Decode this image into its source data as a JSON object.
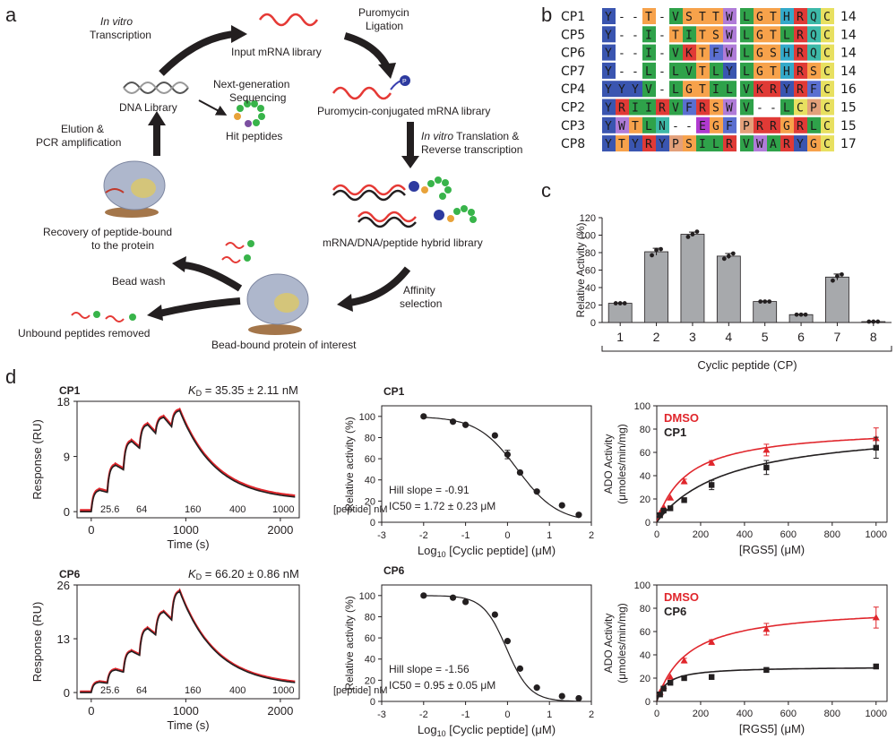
{
  "panels": {
    "a": "a",
    "b": "b",
    "c": "c",
    "d": "d"
  },
  "cycle": {
    "in_vitro_1": "In vitro",
    "transcription": "Transcription",
    "input_library": "Input mRNA library",
    "puro_1": "Puromycin",
    "puro_2": "Ligation",
    "dna_library": "DNA Library",
    "ngs_1": "Next-generation",
    "ngs_2": "Sequencing",
    "conjugated": "Puromycin-conjugated mRNA library",
    "elution_1": "Elution &",
    "elution_2": "PCR amplification",
    "hit_peptides": "Hit peptides",
    "translation_it": "In vitro",
    "translation_1": " Translation &",
    "translation_2": "Reverse transcription",
    "recovery_1": "Recovery of peptide-bound",
    "recovery_2": "to the protein",
    "hybrid": "mRNA/DNA/peptide hybrid library",
    "bead_wash": "Bead wash",
    "affinity_1": "Affinity",
    "affinity_2": "selection",
    "unbound": "Unbound peptides removed",
    "bead_bound": "Bead-bound protein of interest",
    "puro_mark": "P"
  },
  "alignment": [
    {
      "name": "CP1",
      "left": [
        "Y",
        "-",
        "-",
        "T",
        "-",
        "V",
        "S",
        "T",
        "T",
        "W"
      ],
      "right": [
        "L",
        "G",
        "T",
        "H",
        "R",
        "Q",
        "C"
      ],
      "len": "14"
    },
    {
      "name": "CP5",
      "left": [
        "Y",
        "-",
        "-",
        "I",
        "-",
        "T",
        "I",
        "T",
        "S",
        "W"
      ],
      "right": [
        "L",
        "G",
        "T",
        "L",
        "R",
        "Q",
        "C"
      ],
      "len": "14"
    },
    {
      "name": "CP6",
      "left": [
        "Y",
        "-",
        "-",
        "I",
        "-",
        "V",
        "K",
        "T",
        "F",
        "W"
      ],
      "right": [
        "L",
        "G",
        "S",
        "H",
        "R",
        "Q",
        "C"
      ],
      "len": "14"
    },
    {
      "name": "CP7",
      "left": [
        "Y",
        "-",
        "-",
        "L",
        "-",
        "L",
        "V",
        "T",
        "L",
        "Y"
      ],
      "right": [
        "L",
        "G",
        "T",
        "H",
        "R",
        "S",
        "C"
      ],
      "len": "14"
    },
    {
      "name": "CP4",
      "left": [
        "Y",
        "Y",
        "Y",
        "V",
        "-",
        "L",
        "G",
        "T",
        "I",
        "L"
      ],
      "right": [
        "V",
        "K",
        "R",
        "Y",
        "R",
        "F",
        "C"
      ],
      "len": "16"
    },
    {
      "name": "CP2",
      "left": [
        "Y",
        "R",
        "I",
        "I",
        "R",
        "V",
        "F",
        "R",
        "S",
        "W"
      ],
      "right": [
        "V",
        "-",
        "-",
        "L",
        "C",
        "P",
        "C"
      ],
      "len": "15"
    },
    {
      "name": "CP3",
      "left": [
        "Y",
        "W",
        "T",
        "L",
        "N",
        "-",
        "-",
        "E",
        "G",
        "F"
      ],
      "right": [
        "P",
        "R",
        "R",
        "G",
        "R",
        "L",
        "C"
      ],
      "len": "15"
    },
    {
      "name": "CP8",
      "left": [
        "Y",
        "T",
        "Y",
        "R",
        "Y",
        "P",
        "S",
        "I",
        "L",
        "R"
      ],
      "right": [
        "V",
        "W",
        "A",
        "R",
        "Y",
        "G",
        "C"
      ],
      "len": "17"
    }
  ],
  "residue_colors": {
    "Y": "#3a55b0",
    "W": "#b07cd8",
    "F": "#5b6fd0",
    "I": "#2fa24a",
    "L": "#2fa24a",
    "V": "#2fa24a",
    "A": "#2fa24a",
    "G": "#f7a24b",
    "P": "#e3a07a",
    "S": "#f7a24b",
    "T": "#f7a24b",
    "C": "#e8e060",
    "Q": "#3db9a8",
    "N": "#3db9a8",
    "H": "#33a9c9",
    "R": "#e03a36",
    "K": "#e03a36",
    "E": "#b03ad0",
    "-": "#ffffff"
  },
  "chart_data": [
    {
      "type": "bar",
      "panel": "c",
      "categories": [
        "1",
        "2",
        "3",
        "4",
        "5",
        "6",
        "7",
        "8"
      ],
      "values": [
        22,
        81,
        101,
        76,
        24,
        9,
        52,
        1
      ],
      "errors": [
        0.5,
        4,
        2.5,
        3,
        0.5,
        0.5,
        3.5,
        0.5
      ],
      "points": [
        [
          22,
          22,
          22
        ],
        [
          77,
          83,
          84
        ],
        [
          98,
          101,
          104
        ],
        [
          73,
          76,
          79
        ],
        [
          24,
          24,
          24
        ],
        [
          9,
          9,
          9
        ],
        [
          48,
          53,
          55
        ],
        [
          1,
          1,
          1
        ]
      ],
      "ylabel": "Relative Activity (%)",
      "xlabel": "Cyclic peptide (CP)",
      "ylim": [
        0,
        120
      ],
      "yticks": [
        0,
        20,
        40,
        60,
        80,
        100,
        120
      ]
    },
    {
      "type": "line",
      "panel": "d-spr-cp1",
      "title": "CP1",
      "kd_label": "K",
      "kd_sub": "D",
      "kd_value": " = 35.35 ± 2.11 nM",
      "ylabel": "Response (RU)",
      "xlabel": "Time (s)",
      "xlim": [
        -150,
        2200
      ],
      "ylim": [
        -1,
        18
      ],
      "yticks": [
        0,
        9,
        18
      ],
      "xticks": [
        0,
        1000,
        2000
      ],
      "conc_labels": [
        "25.6",
        "64",
        "160",
        "400",
        "1000",
        "[peptide] nM"
      ],
      "injections": [
        0,
        170,
        340,
        510,
        680,
        850
      ],
      "plateaus": [
        3.5,
        7.6,
        11.5,
        14.2,
        15.4,
        16.5
      ],
      "dissociation_end": 1.8
    },
    {
      "type": "line",
      "panel": "d-spr-cp6",
      "title": "CP6",
      "kd_label": "K",
      "kd_sub": "D",
      "kd_value": " = 66.20 ± 0.86 nM",
      "ylabel": "Response (RU)",
      "xlabel": "Time (s)",
      "xlim": [
        -150,
        2200
      ],
      "ylim": [
        -1.5,
        26
      ],
      "yticks": [
        0,
        13,
        26
      ],
      "xticks": [
        0,
        1000,
        2000
      ],
      "conc_labels": [
        "25.6",
        "64",
        "160",
        "400",
        "1000",
        "[peptide] nM"
      ],
      "injections": [
        0,
        170,
        340,
        510,
        680,
        850
      ],
      "plateaus": [
        2.5,
        5.5,
        10,
        15.5,
        19.5,
        24.5
      ],
      "dissociation_end": 1.5
    },
    {
      "type": "scatter",
      "panel": "d-ic50-cp1",
      "title": "CP1",
      "ylabel": "Relative activity (%)",
      "xlabel": "Log",
      "xlabel_sub": "10",
      "xlabel_rest": " [Cyclic peptide] (μM)",
      "xlim": [
        -3,
        2
      ],
      "ylim": [
        0,
        110
      ],
      "yticks": [
        0,
        20,
        40,
        60,
        80,
        100
      ],
      "xticks": [
        -3,
        -2,
        -1,
        0,
        1,
        2
      ],
      "x": [
        -2,
        -1.3,
        -1,
        -0.3,
        0,
        0.3,
        0.7,
        1.3,
        1.7
      ],
      "y": [
        100,
        95,
        92,
        82,
        64,
        47,
        29,
        16,
        7
      ],
      "errors": [
        0,
        0,
        0,
        0,
        4,
        0,
        0,
        0,
        0
      ],
      "hill": -0.91,
      "logic50": 0.236,
      "annot_1": "Hill slope = -0.91",
      "annot_2": "IC50 = 1.72 ± 0.23 μM"
    },
    {
      "type": "scatter",
      "panel": "d-ic50-cp6",
      "title": "CP6",
      "ylabel": "Relative activity (%)",
      "xlabel": "Log",
      "xlabel_sub": "10",
      "xlabel_rest": " [Cyclic peptide] (μM)",
      "xlim": [
        -3,
        2
      ],
      "ylim": [
        0,
        110
      ],
      "yticks": [
        0,
        20,
        40,
        60,
        80,
        100
      ],
      "xticks": [
        -3,
        -2,
        -1,
        0,
        1,
        2
      ],
      "x": [
        -2,
        -1.3,
        -1,
        -0.3,
        0,
        0.3,
        0.7,
        1.3,
        1.7
      ],
      "y": [
        100,
        98,
        94,
        82,
        57,
        31,
        13,
        5,
        3
      ],
      "errors": [
        0,
        0,
        0,
        0,
        0,
        0,
        0,
        0,
        0
      ],
      "hill": -1.56,
      "logic50": -0.022,
      "annot_1": "Hill slope = -1.56",
      "annot_2": "IC50 = 0.95 ± 0.05 μM"
    },
    {
      "type": "scatter",
      "panel": "d-mm-cp1",
      "ylabel_1": "ADO Activity",
      "ylabel_2": "(μmoles/min/mg)",
      "xlabel": "[RGS5] (μM)",
      "xlim": [
        0,
        1050
      ],
      "ylim": [
        0,
        100
      ],
      "yticks": [
        0,
        20,
        40,
        60,
        80,
        100
      ],
      "xticks": [
        0,
        200,
        400,
        600,
        800,
        1000
      ],
      "series": [
        {
          "name": "DMSO",
          "color": "#e0262c",
          "x": [
            15,
            31,
            62,
            125,
            250,
            500,
            1000
          ],
          "y": [
            8,
            13,
            21,
            35,
            51,
            62,
            72
          ],
          "errors": [
            0,
            0,
            0,
            2,
            2,
            5,
            9
          ],
          "vmax": 82,
          "km": 140
        },
        {
          "name": "CP1",
          "color": "#231f20",
          "x": [
            15,
            31,
            62,
            125,
            250,
            500,
            1000
          ],
          "y": [
            6,
            10,
            12,
            19,
            32,
            47,
            64
          ],
          "errors": [
            0,
            0,
            0,
            0,
            4,
            6,
            9
          ],
          "vmax": 84,
          "km": 330
        }
      ]
    },
    {
      "type": "scatter",
      "panel": "d-mm-cp6",
      "ylabel_1": "ADO Activity",
      "ylabel_2": "(μmoles/min/mg)",
      "xlabel": "[RGS5] (μM)",
      "xlim": [
        0,
        1050
      ],
      "ylim": [
        0,
        100
      ],
      "yticks": [
        0,
        20,
        40,
        60,
        80,
        100
      ],
      "xticks": [
        0,
        200,
        400,
        600,
        800,
        1000
      ],
      "series": [
        {
          "name": "DMSO",
          "color": "#e0262c",
          "x": [
            15,
            31,
            62,
            125,
            250,
            500,
            1000
          ],
          "y": [
            8,
            13,
            21,
            35,
            51,
            62,
            72
          ],
          "errors": [
            0,
            0,
            0,
            2,
            2,
            5,
            9
          ],
          "vmax": 82,
          "km": 140
        },
        {
          "name": "CP6",
          "color": "#231f20",
          "x": [
            15,
            31,
            62,
            125,
            250,
            500,
            1000
          ],
          "y": [
            6,
            11,
            16,
            20,
            21,
            27,
            30
          ],
          "errors": [
            0,
            0,
            0,
            0,
            2,
            2,
            2
          ],
          "vmax": 30,
          "km": 45
        }
      ]
    }
  ]
}
